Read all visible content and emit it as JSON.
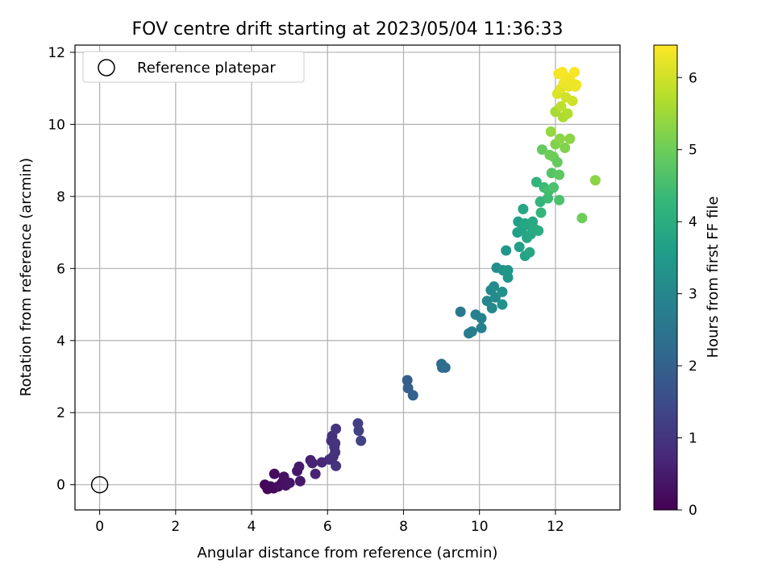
{
  "chart_data": {
    "type": "scatter",
    "title": "FOV centre drift starting at 2023/05/04 11:36:33",
    "xlabel": "Angular distance from reference (arcmin)",
    "ylabel": "Rotation from reference (arcmin)",
    "xlim": [
      -0.65,
      13.7
    ],
    "ylim": [
      -0.7,
      12.2
    ],
    "xticks": [
      "0",
      "2",
      "4",
      "6",
      "8",
      "10",
      "12"
    ],
    "yticks": [
      "0",
      "2",
      "4",
      "6",
      "8",
      "10",
      "12"
    ],
    "grid": true,
    "legend": {
      "placement": "top-left",
      "entries": [
        "Reference platepar"
      ]
    },
    "reference_point": {
      "x": 0,
      "y": 0
    },
    "colorbar": {
      "label": "Hours from first FF file",
      "colormap": "viridis",
      "range": [
        0,
        6.45
      ],
      "ticks": [
        "0",
        "1",
        "2",
        "3",
        "4",
        "5",
        "6"
      ],
      "colors": [
        "#440154",
        "#482878",
        "#3e4989",
        "#31688e",
        "#26828e",
        "#1f9e89",
        "#35b779",
        "#6ece58",
        "#b5de2b",
        "#fde725"
      ]
    },
    "points": [
      {
        "x": 4.35,
        "y": 0.0,
        "t": 0.05
      },
      {
        "x": 4.42,
        "y": -0.12,
        "t": 0.1
      },
      {
        "x": 4.5,
        "y": -0.05,
        "t": 0.12
      },
      {
        "x": 4.58,
        "y": -0.1,
        "t": 0.15
      },
      {
        "x": 4.6,
        "y": 0.3,
        "t": 0.2
      },
      {
        "x": 4.7,
        "y": -0.05,
        "t": 0.22
      },
      {
        "x": 4.8,
        "y": 0.05,
        "t": 0.25
      },
      {
        "x": 4.85,
        "y": 0.22,
        "t": 0.3
      },
      {
        "x": 4.9,
        "y": -0.02,
        "t": 0.3
      },
      {
        "x": 5.0,
        "y": 0.05,
        "t": 0.35
      },
      {
        "x": 5.2,
        "y": 0.38,
        "t": 0.4
      },
      {
        "x": 5.25,
        "y": 0.5,
        "t": 0.45
      },
      {
        "x": 5.28,
        "y": 0.1,
        "t": 0.45
      },
      {
        "x": 5.55,
        "y": 0.68,
        "t": 0.6
      },
      {
        "x": 5.6,
        "y": 0.6,
        "t": 0.62
      },
      {
        "x": 5.68,
        "y": 0.3,
        "t": 0.65
      },
      {
        "x": 5.85,
        "y": 0.62,
        "t": 0.7
      },
      {
        "x": 6.05,
        "y": 0.7,
        "t": 0.8
      },
      {
        "x": 6.1,
        "y": 1.22,
        "t": 0.85
      },
      {
        "x": 6.12,
        "y": 1.35,
        "t": 0.9
      },
      {
        "x": 6.15,
        "y": 0.78,
        "t": 0.9
      },
      {
        "x": 6.18,
        "y": 1.05,
        "t": 0.95
      },
      {
        "x": 6.2,
        "y": 1.15,
        "t": 0.95
      },
      {
        "x": 6.2,
        "y": 0.9,
        "t": 0.95
      },
      {
        "x": 6.22,
        "y": 1.55,
        "t": 1.0
      },
      {
        "x": 6.22,
        "y": 0.52,
        "t": 0.95
      },
      {
        "x": 6.8,
        "y": 1.7,
        "t": 1.2
      },
      {
        "x": 6.82,
        "y": 1.5,
        "t": 1.25
      },
      {
        "x": 6.88,
        "y": 1.22,
        "t": 1.3
      },
      {
        "x": 8.1,
        "y": 2.9,
        "t": 1.9
      },
      {
        "x": 8.12,
        "y": 2.68,
        "t": 1.95
      },
      {
        "x": 8.25,
        "y": 2.48,
        "t": 2.0
      },
      {
        "x": 9.0,
        "y": 3.35,
        "t": 2.25
      },
      {
        "x": 9.02,
        "y": 3.25,
        "t": 2.3
      },
      {
        "x": 9.1,
        "y": 3.25,
        "t": 2.3
      },
      {
        "x": 9.5,
        "y": 4.8,
        "t": 2.6
      },
      {
        "x": 9.72,
        "y": 4.2,
        "t": 2.7
      },
      {
        "x": 9.8,
        "y": 4.25,
        "t": 2.75
      },
      {
        "x": 9.9,
        "y": 4.72,
        "t": 2.8
      },
      {
        "x": 10.05,
        "y": 4.62,
        "t": 2.85
      },
      {
        "x": 10.05,
        "y": 4.35,
        "t": 2.85
      },
      {
        "x": 10.2,
        "y": 5.1,
        "t": 3.0
      },
      {
        "x": 10.3,
        "y": 5.4,
        "t": 3.05
      },
      {
        "x": 10.33,
        "y": 4.9,
        "t": 3.05
      },
      {
        "x": 10.38,
        "y": 5.5,
        "t": 3.1
      },
      {
        "x": 10.42,
        "y": 5.2,
        "t": 3.1
      },
      {
        "x": 10.45,
        "y": 6.02,
        "t": 3.2
      },
      {
        "x": 10.6,
        "y": 5.35,
        "t": 3.25
      },
      {
        "x": 10.6,
        "y": 5.0,
        "t": 3.25
      },
      {
        "x": 10.62,
        "y": 5.95,
        "t": 3.3
      },
      {
        "x": 10.7,
        "y": 6.5,
        "t": 3.4
      },
      {
        "x": 10.75,
        "y": 5.95,
        "t": 3.4
      },
      {
        "x": 10.75,
        "y": 5.75,
        "t": 3.4
      },
      {
        "x": 11.0,
        "y": 7.0,
        "t": 3.6
      },
      {
        "x": 11.02,
        "y": 7.3,
        "t": 3.65
      },
      {
        "x": 11.05,
        "y": 6.6,
        "t": 3.65
      },
      {
        "x": 11.1,
        "y": 7.05,
        "t": 3.7
      },
      {
        "x": 11.15,
        "y": 7.65,
        "t": 3.8
      },
      {
        "x": 11.2,
        "y": 7.25,
        "t": 3.8
      },
      {
        "x": 11.2,
        "y": 6.35,
        "t": 3.7
      },
      {
        "x": 11.25,
        "y": 6.85,
        "t": 3.8
      },
      {
        "x": 11.3,
        "y": 7.2,
        "t": 3.85
      },
      {
        "x": 11.32,
        "y": 6.45,
        "t": 3.8
      },
      {
        "x": 11.35,
        "y": 6.95,
        "t": 3.85
      },
      {
        "x": 11.4,
        "y": 7.3,
        "t": 3.9
      },
      {
        "x": 11.45,
        "y": 7.1,
        "t": 3.95
      },
      {
        "x": 11.5,
        "y": 8.4,
        "t": 4.2
      },
      {
        "x": 11.55,
        "y": 7.05,
        "t": 4.0
      },
      {
        "x": 11.6,
        "y": 7.85,
        "t": 4.2
      },
      {
        "x": 11.62,
        "y": 7.55,
        "t": 4.25
      },
      {
        "x": 11.65,
        "y": 9.3,
        "t": 4.9
      },
      {
        "x": 11.7,
        "y": 8.25,
        "t": 4.4
      },
      {
        "x": 11.8,
        "y": 7.95,
        "t": 4.4
      },
      {
        "x": 11.82,
        "y": 8.15,
        "t": 4.5
      },
      {
        "x": 11.85,
        "y": 9.15,
        "t": 5.0
      },
      {
        "x": 11.88,
        "y": 9.8,
        "t": 5.4
      },
      {
        "x": 11.9,
        "y": 8.65,
        "t": 4.7
      },
      {
        "x": 11.95,
        "y": 9.1,
        "t": 5.0
      },
      {
        "x": 11.95,
        "y": 8.25,
        "t": 4.6
      },
      {
        "x": 12.0,
        "y": 9.45,
        "t": 5.2
      },
      {
        "x": 12.0,
        "y": 10.35,
        "t": 5.6
      },
      {
        "x": 12.05,
        "y": 8.95,
        "t": 4.9
      },
      {
        "x": 12.05,
        "y": 10.85,
        "t": 6.1
      },
      {
        "x": 12.08,
        "y": 11.4,
        "t": 6.35
      },
      {
        "x": 12.1,
        "y": 8.6,
        "t": 4.8
      },
      {
        "x": 12.1,
        "y": 7.9,
        "t": 4.6
      },
      {
        "x": 12.12,
        "y": 9.6,
        "t": 5.3
      },
      {
        "x": 12.15,
        "y": 10.5,
        "t": 5.8
      },
      {
        "x": 12.15,
        "y": 11.0,
        "t": 6.2
      },
      {
        "x": 12.18,
        "y": 11.45,
        "t": 6.4
      },
      {
        "x": 12.2,
        "y": 10.2,
        "t": 5.65
      },
      {
        "x": 12.22,
        "y": 11.15,
        "t": 6.3
      },
      {
        "x": 12.25,
        "y": 9.35,
        "t": 5.2
      },
      {
        "x": 12.28,
        "y": 10.75,
        "t": 6.0
      },
      {
        "x": 12.3,
        "y": 11.3,
        "t": 6.35
      },
      {
        "x": 12.32,
        "y": 10.3,
        "t": 5.7
      },
      {
        "x": 12.35,
        "y": 11.05,
        "t": 6.25
      },
      {
        "x": 12.38,
        "y": 9.6,
        "t": 5.3
      },
      {
        "x": 12.4,
        "y": 11.2,
        "t": 6.3
      },
      {
        "x": 12.45,
        "y": 10.65,
        "t": 6.0
      },
      {
        "x": 12.5,
        "y": 11.45,
        "t": 6.4
      },
      {
        "x": 12.52,
        "y": 11.05,
        "t": 6.3
      },
      {
        "x": 12.55,
        "y": 11.1,
        "t": 6.3
      },
      {
        "x": 12.7,
        "y": 7.4,
        "t": 5.0
      },
      {
        "x": 13.05,
        "y": 8.45,
        "t": 5.3
      }
    ]
  }
}
